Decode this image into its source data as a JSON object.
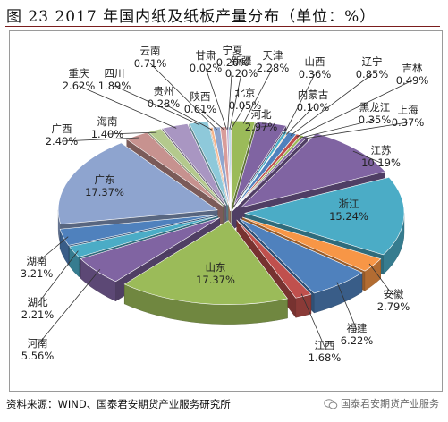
{
  "title": "图 23 2017 年国内纸及纸板产量分布（单位：%）",
  "source": "资料来源：WIND、国泰君安期货产业服务研究所",
  "watermark": "国泰君安期货产业服务",
  "chart_data": {
    "type": "pie",
    "style": "3d-exploded",
    "title": "",
    "unit": "%",
    "categories": [
      "北京",
      "天津",
      "河北",
      "山西",
      "内蒙古",
      "辽宁",
      "吉林",
      "黑龙江",
      "上海",
      "江苏",
      "浙江",
      "安徽",
      "福建",
      "江西",
      "山东",
      "河南",
      "湖北",
      "湖南",
      "广东",
      "广西",
      "海南",
      "重庆",
      "四川",
      "贵州",
      "云南",
      "陕西",
      "甘肃",
      "宁夏",
      "新疆"
    ],
    "values": [
      0.05,
      2.28,
      2.97,
      0.36,
      0.1,
      0.85,
      0.49,
      0.35,
      0.37,
      10.19,
      15.24,
      2.79,
      6.22,
      1.68,
      17.37,
      5.56,
      2.21,
      3.21,
      17.37,
      2.4,
      1.4,
      2.62,
      1.89,
      0.28,
      0.71,
      0.61,
      0.02,
      0.2,
      0.2
    ],
    "labels": [
      "0.05%",
      "2.28%",
      "2.97%",
      "0.36%",
      "0.10%",
      "0.85%",
      "0.49%",
      "0.35%",
      "0.37%",
      "10.19%",
      "15.24%",
      "2.79%",
      "6.22%",
      "1.68%",
      "17.37%",
      "5.56%",
      "2.21%",
      "3.21%",
      "17.37%",
      "2.40%",
      "1.40%",
      "2.62%",
      "1.89%",
      "0.28%",
      "0.71%",
      "0.61%",
      "0.02%",
      "0.20%",
      "0.20%"
    ],
    "colors": [
      "#c0504d",
      "#9bbb59",
      "#8064a2",
      "#4bacc6",
      "#f79646",
      "#4f81bd",
      "#c0504d",
      "#9bbb59",
      "#8064a2",
      "#8064a2",
      "#4bacc6",
      "#f79646",
      "#4f81bd",
      "#c0504d",
      "#9bbb59",
      "#8064a2",
      "#4bacc6",
      "#4f81bd",
      "#8ea4cf",
      "#c7928f",
      "#b4c98d",
      "#a996c2",
      "#8ec9da",
      "#f9b68a",
      "#8fa6cf",
      "#d89c9a",
      "#bfd69a",
      "#b6a5cb",
      "#9fd0de"
    ]
  }
}
